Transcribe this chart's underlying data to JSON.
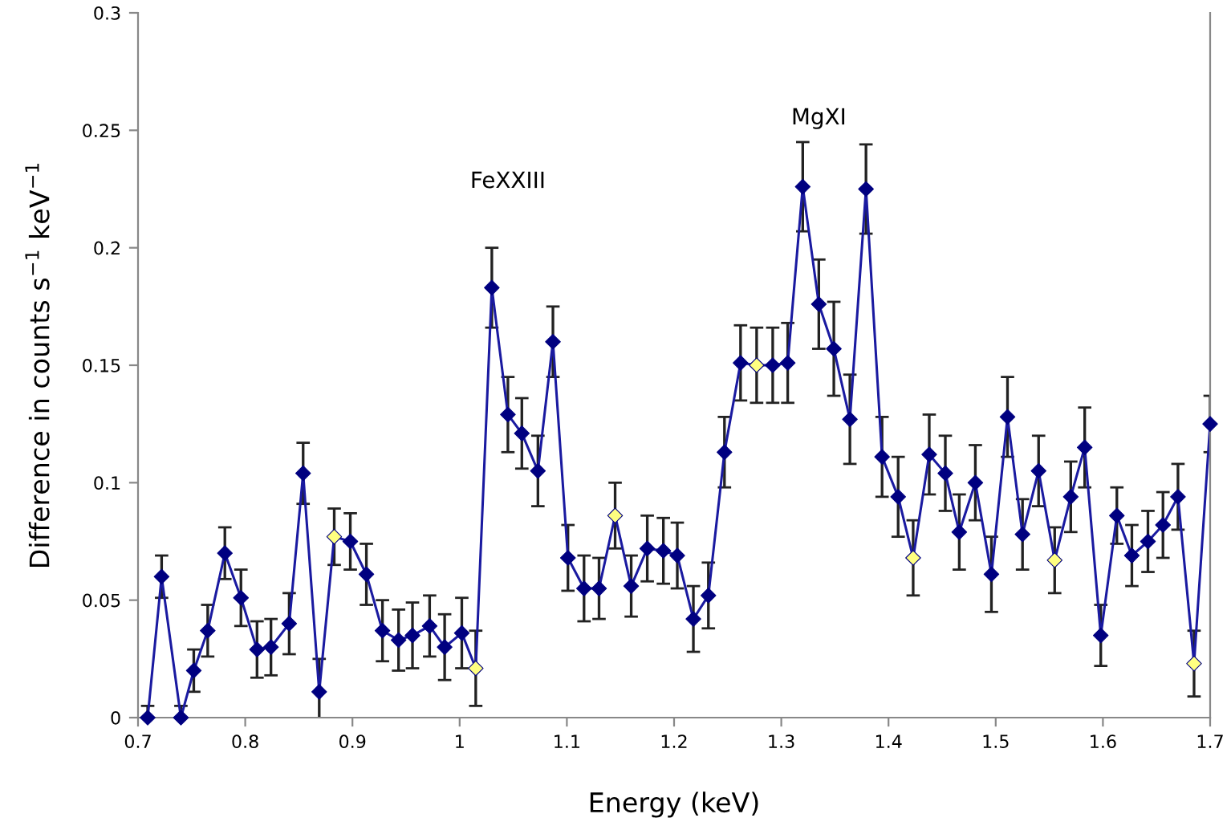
{
  "chart_data": {
    "type": "line",
    "xlabel": "Energy (keV)",
    "ylabel": "Difference in counts s$^{−1}$ keV$^{−1}$",
    "x": [
      0.709,
      0.722,
      0.74,
      0.752,
      0.765,
      0.781,
      0.796,
      0.811,
      0.824,
      0.841,
      0.854,
      0.869,
      0.883,
      0.898,
      0.913,
      0.928,
      0.943,
      0.956,
      0.972,
      0.986,
      1.002,
      1.015,
      1.03,
      1.045,
      1.058,
      1.073,
      1.087,
      1.101,
      1.116,
      1.13,
      1.145,
      1.16,
      1.175,
      1.19,
      1.203,
      1.218,
      1.232,
      1.247,
      1.262,
      1.277,
      1.292,
      1.306,
      1.32,
      1.335,
      1.349,
      1.364,
      1.379,
      1.394,
      1.409,
      1.423,
      1.438,
      1.453,
      1.466,
      1.481,
      1.496,
      1.511,
      1.525,
      1.54,
      1.555,
      1.57,
      1.583,
      1.598,
      1.613,
      1.627,
      1.642,
      1.656,
      1.67,
      1.685,
      1.7
    ],
    "series": [
      {
        "color": "#1a1aa0",
        "values": [
          0.0,
          0.06,
          0.0,
          0.02,
          0.037,
          0.07,
          0.051,
          0.029,
          0.03,
          0.04,
          0.104,
          0.011,
          0.077,
          0.075,
          0.061,
          0.037,
          0.033,
          0.035,
          0.039,
          0.03,
          0.036,
          0.021,
          0.183,
          0.129,
          0.121,
          0.105,
          0.16,
          0.068,
          0.055,
          0.055,
          0.086,
          0.056,
          0.072,
          0.071,
          0.069,
          0.042,
          0.052,
          0.113,
          0.151,
          0.15,
          0.15,
          0.151,
          0.226,
          0.176,
          0.157,
          0.127,
          0.225,
          0.111,
          0.094,
          0.068,
          0.112,
          0.104,
          0.079,
          0.1,
          0.061,
          0.128,
          0.078,
          0.105,
          0.067,
          0.094,
          0.115,
          0.035,
          0.086,
          0.069,
          0.075,
          0.082,
          0.094,
          0.023,
          0.125
        ],
        "errors": [
          0.005,
          0.009,
          0.005,
          0.009,
          0.011,
          0.011,
          0.012,
          0.012,
          0.012,
          0.013,
          0.013,
          0.014,
          0.012,
          0.012,
          0.013,
          0.013,
          0.013,
          0.014,
          0.013,
          0.014,
          0.015,
          0.016,
          0.017,
          0.016,
          0.015,
          0.015,
          0.015,
          0.014,
          0.014,
          0.013,
          0.014,
          0.013,
          0.014,
          0.014,
          0.014,
          0.014,
          0.014,
          0.015,
          0.016,
          0.016,
          0.016,
          0.017,
          0.019,
          0.019,
          0.02,
          0.019,
          0.019,
          0.017,
          0.017,
          0.016,
          0.017,
          0.016,
          0.016,
          0.016,
          0.016,
          0.017,
          0.015,
          0.015,
          0.014,
          0.015,
          0.017,
          0.013,
          0.012,
          0.013,
          0.013,
          0.014,
          0.014,
          0.014,
          0.012
        ],
        "colors": [
          "#000080",
          "#000080",
          "#000080",
          "#000080",
          "#000080",
          "#000080",
          "#000080",
          "#000080",
          "#000080",
          "#000080",
          "#000080",
          "#000080",
          "#ffff80",
          "#000080",
          "#000080",
          "#000080",
          "#000080",
          "#000080",
          "#000080",
          "#000080",
          "#000080",
          "#ffff80",
          "#000080",
          "#000080",
          "#000080",
          "#000080",
          "#000080",
          "#000080",
          "#000080",
          "#000080",
          "#ffff80",
          "#000080",
          "#000080",
          "#000080",
          "#000080",
          "#000080",
          "#000080",
          "#000080",
          "#000080",
          "#ffff80",
          "#000080",
          "#000080",
          "#000080",
          "#000080",
          "#000080",
          "#000080",
          "#000080",
          "#000080",
          "#000080",
          "#ffff80",
          "#000080",
          "#000080",
          "#000080",
          "#000080",
          "#000080",
          "#000080",
          "#000080",
          "#000080",
          "#ffff80",
          "#000080",
          "#000080",
          "#000080",
          "#000080",
          "#000080",
          "#000080",
          "#000080",
          "#000080",
          "#ffff80",
          "#000080"
        ]
      }
    ],
    "annotations": [
      "FeXXIII",
      "MgXI"
    ],
    "xlim": [
      0.7,
      1.7
    ],
    "xticks": [
      0.7,
      0.8,
      0.9,
      1,
      1.1,
      1.2,
      1.3,
      1.4,
      1.5,
      1.6,
      1.7
    ],
    "ylim": [
      0,
      0.3
    ],
    "yticks": [
      0,
      0.05,
      0.1,
      0.15,
      0.2,
      0.25,
      0.3
    ],
    "grid": false,
    "legend": false,
    "marker": "diamond",
    "line_style": "solid"
  }
}
